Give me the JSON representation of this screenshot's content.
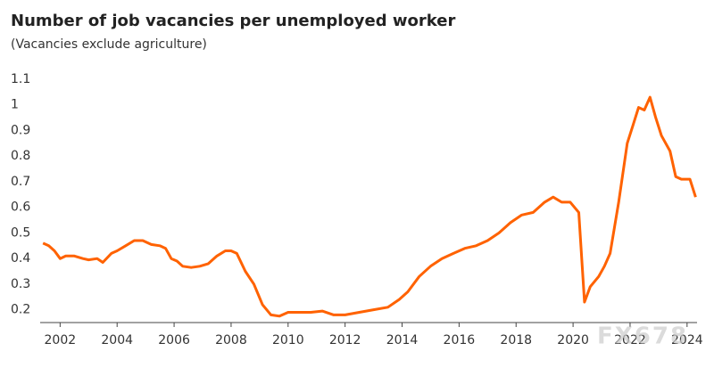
{
  "chart_data": {
    "type": "line",
    "title": "Number of job vacancies per unemployed worker",
    "subtitle": "(Vacancies exclude agriculture)",
    "watermark": "FX678",
    "x": [
      2001.4,
      2001.6,
      2001.8,
      2002.0,
      2002.2,
      2002.5,
      2002.8,
      2003.0,
      2003.3,
      2003.5,
      2003.8,
      2004.0,
      2004.3,
      2004.6,
      2004.9,
      2005.2,
      2005.5,
      2005.7,
      2005.9,
      2006.1,
      2006.3,
      2006.6,
      2006.9,
      2007.2,
      2007.5,
      2007.8,
      2008.0,
      2008.2,
      2008.5,
      2008.8,
      2009.1,
      2009.4,
      2009.7,
      2010.0,
      2010.4,
      2010.8,
      2011.2,
      2011.6,
      2012.0,
      2012.5,
      2013.0,
      2013.5,
      2013.9,
      2014.2,
      2014.6,
      2015.0,
      2015.4,
      2015.8,
      2016.2,
      2016.6,
      2017.0,
      2017.4,
      2017.8,
      2018.2,
      2018.6,
      2019.0,
      2019.3,
      2019.6,
      2019.9,
      2020.2,
      2020.4,
      2020.6,
      2020.9,
      2021.1,
      2021.3,
      2021.6,
      2021.9,
      2022.1,
      2022.3,
      2022.5,
      2022.7,
      2022.9,
      2023.1,
      2023.4,
      2023.6,
      2023.8,
      2024.1,
      2024.3
    ],
    "series": [
      {
        "name": "Vacancies per unemployed worker",
        "color": "#ff6200",
        "values": [
          0.46,
          0.45,
          0.43,
          0.4,
          0.41,
          0.41,
          0.4,
          0.395,
          0.4,
          0.385,
          0.42,
          0.43,
          0.45,
          0.47,
          0.47,
          0.455,
          0.45,
          0.44,
          0.4,
          0.39,
          0.37,
          0.365,
          0.37,
          0.38,
          0.41,
          0.43,
          0.43,
          0.42,
          0.35,
          0.3,
          0.22,
          0.18,
          0.175,
          0.19,
          0.19,
          0.19,
          0.195,
          0.18,
          0.18,
          0.19,
          0.2,
          0.21,
          0.24,
          0.27,
          0.33,
          0.37,
          0.4,
          0.42,
          0.44,
          0.45,
          0.47,
          0.5,
          0.54,
          0.57,
          0.58,
          0.62,
          0.64,
          0.62,
          0.62,
          0.58,
          0.23,
          0.29,
          0.33,
          0.37,
          0.42,
          0.62,
          0.85,
          0.92,
          0.99,
          0.98,
          1.03,
          0.95,
          0.88,
          0.82,
          0.72,
          0.71,
          0.71,
          0.64
        ]
      }
    ],
    "xlim": [
      2001.3,
      2024.35
    ],
    "xticks": [
      2002,
      2004,
      2006,
      2008,
      2010,
      2012,
      2014,
      2016,
      2018,
      2020,
      2022,
      2024
    ],
    "ylim": [
      0.15,
      1.1
    ],
    "yticks": [
      0.2,
      0.3,
      0.4,
      0.5,
      0.6,
      0.7,
      0.8,
      0.9,
      1.0,
      1.1
    ]
  }
}
